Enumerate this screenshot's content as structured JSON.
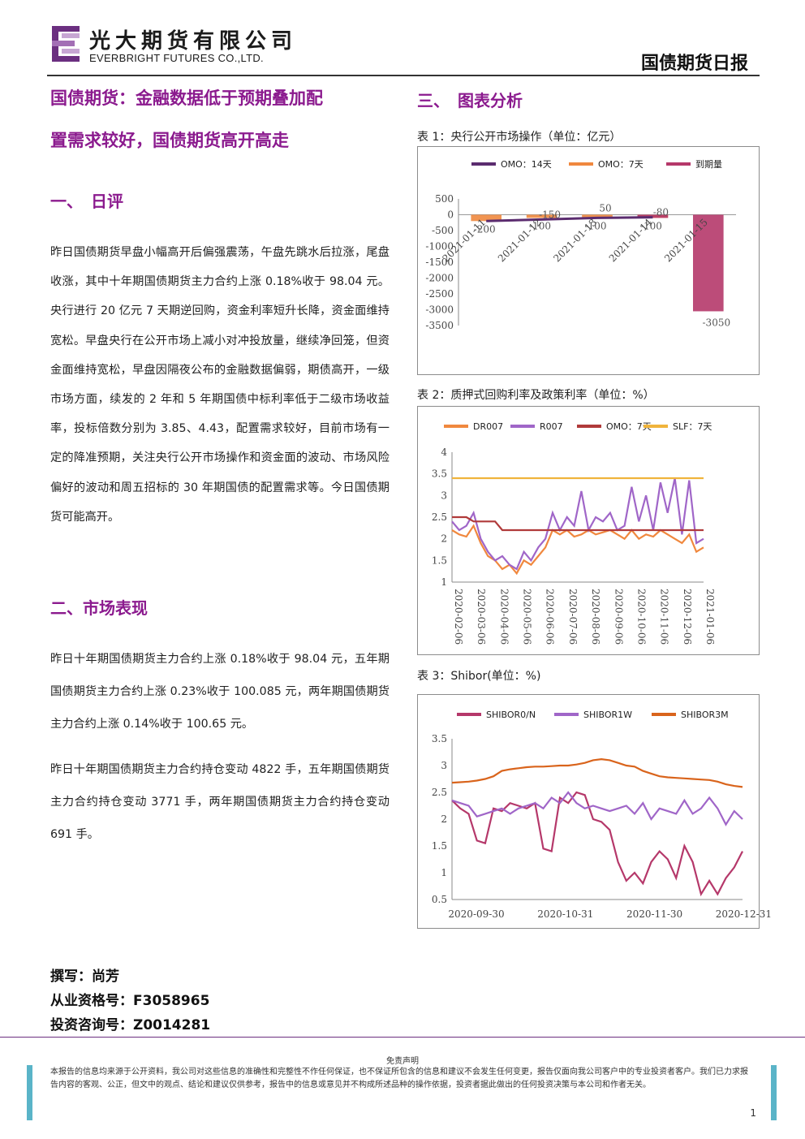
{
  "header": {
    "company_cn": "光大期货有限公司",
    "company_en": "EVERBRIGHT FUTURES CO.,LTD.",
    "report_type": "国债期货日报",
    "brand_color": "#6b2f80"
  },
  "article": {
    "title_line1": "国债期货：金融数据低于预期叠加配",
    "title_line2": "置需求较好，国债期货高开高走",
    "section1_heading": "一、　日评",
    "section1_paragraph": "昨日国债期货早盘小幅高开后偏强震荡，午盘先跳水后拉涨，尾盘收涨，其中十年期国债期货主力合约上涨 0.18%收于 98.04 元。央行进行 20 亿元 7 天期逆回购，资金利率短升长降，资金面维持宽松。早盘央行在公开市场上减小对冲投放量，继续净回笼，但资金面维持宽松，早盘因隔夜公布的金融数据偏弱，期债高开，一级市场方面，续发的 2 年和 5 年期国债中标利率低于二级市场收益率，投标倍数分别为 3.85、4.43，配置需求较好，目前市场有一定的降准预期，关注央行公开市场操作和资金面的波动、市场风险偏好的波动和周五招标的 30 年期国债的配置需求等。今日国债期货可能高开。",
    "section2_heading": "二、市场表现",
    "section2_paragraph1": "昨日十年期国债期货主力合约上涨 0.18%收于 98.04 元，五年期国债期货主力合约上涨 0.23%收于 100.085 元，两年期国债期货主力合约上涨 0.14%收于 100.65 元。",
    "section2_paragraph2": "昨日十年期国债期货主力合约持仓变动 4822 手，五年期国债期货主力合约持仓变动 3771 手，两年期国债期货主力合约持仓变动 691 手。",
    "section3_heading": "三、　图表分析"
  },
  "charts": {
    "caption1": "表 1：央行公开市场操作（单位：亿元）",
    "caption2": "表 2：质押式回购利率及政策利率（单位：%）",
    "caption3": "表 3：Shibor(单位：%)"
  },
  "chart_data": [
    {
      "type": "bar",
      "title": "表 1：央行公开市场操作（单位：亿元）",
      "categories": [
        "2021-01-11",
        "2021-01-12",
        "2021-01-13",
        "2021-01-14",
        "2021-01-15"
      ],
      "series": [
        {
          "name": "OMO：14天",
          "kind": "line",
          "color": "#5b2c6f",
          "values": [
            -200,
            -150,
            -100,
            -80,
            null
          ]
        },
        {
          "name": "OMO：7天",
          "kind": "bar",
          "color": "#f0883e",
          "values": [
            -200,
            -100,
            -100,
            -100,
            null
          ]
        },
        {
          "name": "到期量",
          "kind": "bar",
          "color": "#b5386a",
          "values": [
            null,
            null,
            null,
            -100,
            -3050
          ]
        }
      ],
      "data_labels": [
        "-200",
        "-150",
        "-100",
        "50",
        "-100",
        "-80",
        "-100",
        "-3050"
      ],
      "ylim": [
        -3500,
        500
      ],
      "yticks": [
        "500",
        "0",
        "-500",
        "-1000",
        "-1500",
        "-2000",
        "-2500",
        "-3000",
        "-3500"
      ],
      "legend": "top"
    },
    {
      "type": "line",
      "title": "表 2：质押式回购利率及政策利率（单位：%）",
      "x_ticks": [
        "2020-02-06",
        "2020-03-06",
        "2020-04-06",
        "2020-05-06",
        "2020-06-06",
        "2020-07-06",
        "2020-08-06",
        "2020-09-06",
        "2020-10-06",
        "2020-11-06",
        "2020-12-06",
        "2021-01-06"
      ],
      "ylim": [
        1,
        4
      ],
      "yticks": [
        "4",
        "3.5",
        "3",
        "2.5",
        "2",
        "1.5",
        "1"
      ],
      "series": [
        {
          "name": "DR007",
          "color": "#f0883e",
          "values": [
            2.2,
            2.1,
            2.05,
            2.3,
            1.9,
            1.6,
            1.5,
            1.3,
            1.4,
            1.2,
            1.5,
            1.4,
            1.6,
            1.8,
            2.2,
            2.1,
            2.2,
            2.05,
            2.1,
            2.2,
            2.1,
            2.15,
            2.2,
            2.1,
            2.0,
            2.2,
            2.0,
            2.1,
            2.05,
            2.2,
            2.1,
            2.0,
            1.9,
            2.1,
            1.7,
            1.8
          ]
        },
        {
          "name": "R007",
          "color": "#a066c8",
          "values": [
            2.4,
            2.2,
            2.3,
            2.6,
            2.0,
            1.7,
            1.5,
            1.6,
            1.4,
            1.3,
            1.7,
            1.5,
            1.8,
            2.0,
            2.6,
            2.2,
            2.5,
            2.3,
            3.1,
            2.2,
            2.5,
            2.4,
            2.6,
            2.2,
            2.3,
            3.2,
            2.4,
            3.0,
            2.2,
            3.3,
            2.6,
            3.4,
            2.1,
            3.35,
            1.9,
            2.0
          ]
        },
        {
          "name": "OMO：7天",
          "color": "#b03a3a",
          "values": [
            2.5,
            2.5,
            2.5,
            2.4,
            2.4,
            2.4,
            2.4,
            2.2,
            2.2,
            2.2,
            2.2,
            2.2,
            2.2,
            2.2,
            2.2,
            2.2,
            2.2,
            2.2,
            2.2,
            2.2,
            2.2,
            2.2,
            2.2,
            2.2,
            2.2,
            2.2,
            2.2,
            2.2,
            2.2,
            2.2,
            2.2,
            2.2,
            2.2,
            2.2,
            2.2,
            2.2
          ]
        },
        {
          "name": "SLF：7天",
          "color": "#f0b43c",
          "values": [
            3.4,
            3.4,
            3.4,
            3.4,
            3.4,
            3.4,
            3.4,
            3.4,
            3.4,
            3.4,
            3.4,
            3.4,
            3.4,
            3.4,
            3.4,
            3.4,
            3.4,
            3.4,
            3.4,
            3.4,
            3.4,
            3.4,
            3.4,
            3.4,
            3.4,
            3.4,
            3.4,
            3.4,
            3.4,
            3.4,
            3.4,
            3.4,
            3.4,
            3.4,
            3.4,
            3.4
          ]
        }
      ],
      "legend": "top"
    },
    {
      "type": "line",
      "title": "表 3：Shibor(单位：%)",
      "x_ticks": [
        "2020-09-30",
        "2020-10-31",
        "2020-11-30",
        "2020-12-31"
      ],
      "ylim": [
        0.5,
        3.5
      ],
      "yticks": [
        "3.5",
        "3",
        "2.5",
        "2",
        "1.5",
        "1",
        "0.5"
      ],
      "series": [
        {
          "name": "SHIBOR0/N",
          "color": "#b5386a",
          "values": [
            2.35,
            2.2,
            2.1,
            1.6,
            1.55,
            2.2,
            2.15,
            2.3,
            2.25,
            2.2,
            2.3,
            1.45,
            1.4,
            2.4,
            2.3,
            2.5,
            2.45,
            2.0,
            1.95,
            1.8,
            1.2,
            0.85,
            1.0,
            0.8,
            1.2,
            1.4,
            1.25,
            0.9,
            1.5,
            1.2,
            0.6,
            0.85,
            0.6,
            0.9,
            1.1,
            1.4
          ]
        },
        {
          "name": "SHIBOR1W",
          "color": "#a066c8",
          "values": [
            2.35,
            2.3,
            2.25,
            2.05,
            2.1,
            2.15,
            2.2,
            2.1,
            2.2,
            2.25,
            2.3,
            2.2,
            2.4,
            2.3,
            2.5,
            2.3,
            2.2,
            2.25,
            2.2,
            2.15,
            2.2,
            2.25,
            2.1,
            2.3,
            2.0,
            2.2,
            2.15,
            2.1,
            2.35,
            2.1,
            2.2,
            2.4,
            2.2,
            1.9,
            2.15,
            2.0
          ]
        },
        {
          "name": "SHIBOR3M",
          "color": "#d9641c",
          "values": [
            2.68,
            2.69,
            2.7,
            2.72,
            2.75,
            2.8,
            2.9,
            2.93,
            2.95,
            2.97,
            2.98,
            2.98,
            2.99,
            3.0,
            3.0,
            3.02,
            3.05,
            3.1,
            3.12,
            3.1,
            3.05,
            3.0,
            2.98,
            2.9,
            2.85,
            2.8,
            2.78,
            2.77,
            2.76,
            2.75,
            2.74,
            2.73,
            2.7,
            2.65,
            2.62,
            2.6
          ]
        }
      ],
      "legend": "top"
    }
  ],
  "author": {
    "writer": "撰写：尚芳",
    "qualification": "从业资格号：F3058965",
    "consult": "投资咨询号：Z0014281"
  },
  "footer": {
    "disclaimer_title": "免责声明",
    "disclaimer_text": "本报告的信息均来源于公开资料，我公司对这些信息的准确性和完整性不作任何保证，也不保证所包含的信息和建议不会发生任何变更，报告仅面向我公司客户中的专业投资者客户。我们已力求报告内容的客观、公正，但文中的观点、结论和建议仅供参考，报告中的信息或意见并不构成所述品种的操作依据，投资者据此做出的任何投资决策与本公司和作者无关。",
    "page_number": "1"
  }
}
